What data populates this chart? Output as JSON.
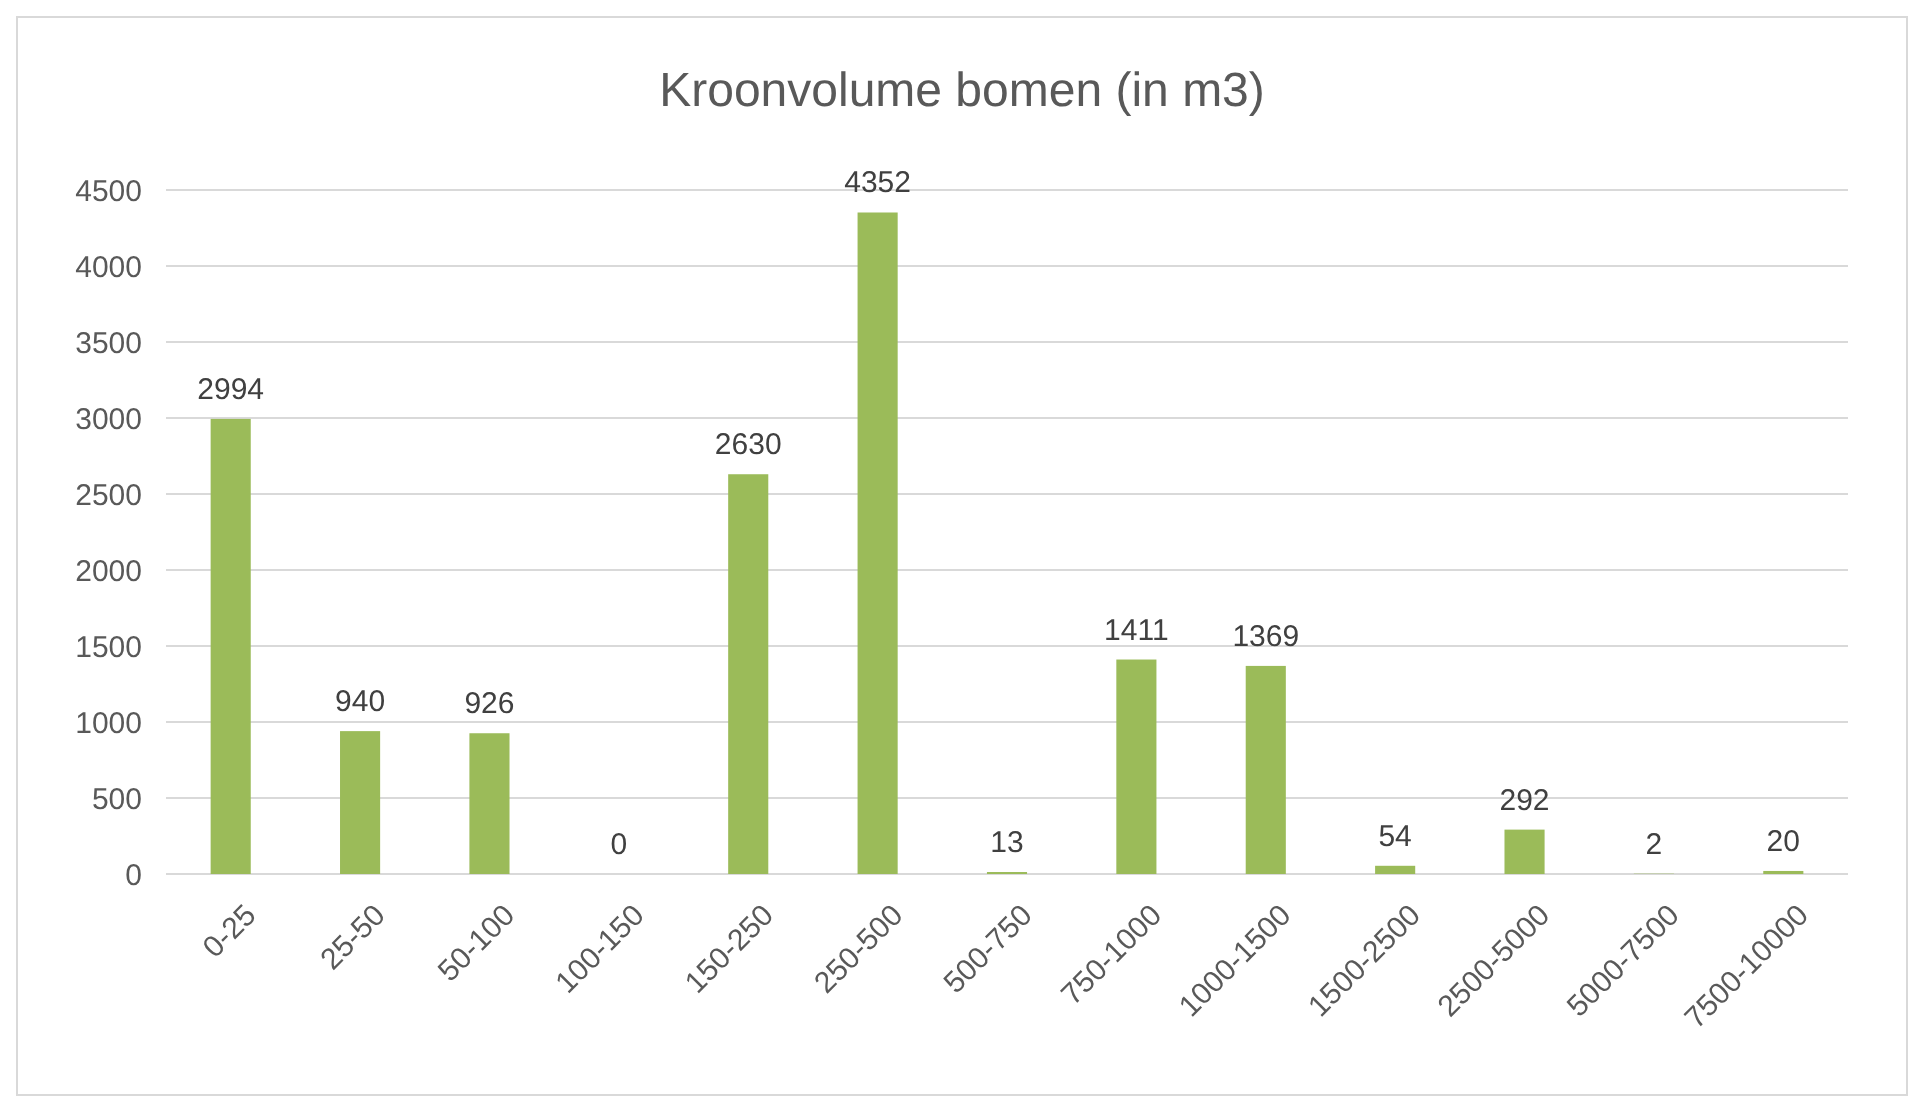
{
  "chart_data": {
    "type": "bar",
    "title": "Kroonvolume bomen (in m3)",
    "categories": [
      "0-25",
      "25-50",
      "50-100",
      "100-150",
      "150-250",
      "250-500",
      "500-750",
      "750-1000",
      "1000-1500",
      "1500-2500",
      "2500-5000",
      "5000-7500",
      "7500-10000"
    ],
    "values": [
      2994,
      940,
      926,
      0,
      2630,
      4352,
      13,
      1411,
      1369,
      54,
      292,
      2,
      20
    ],
    "color": "#9bbb59",
    "ylim": [
      0,
      4500
    ],
    "yticks": [
      0,
      500,
      1000,
      1500,
      2000,
      2500,
      3000,
      3500,
      4000,
      4500
    ],
    "grid": "y",
    "data_labels": true
  }
}
